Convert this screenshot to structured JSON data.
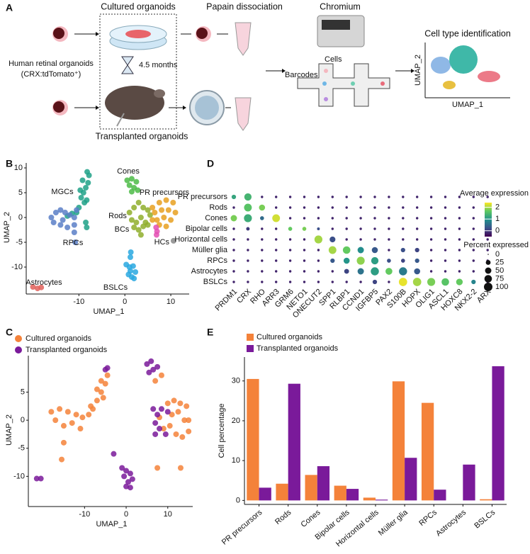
{
  "panel_labels": [
    "A",
    "B",
    "C",
    "D",
    "E"
  ],
  "diagram": {
    "cultured": "Cultured organoids",
    "papain": "Papain dissociation",
    "chromium": "Chromium",
    "source": "Human retinal organoids",
    "reporter": "(CRX:tdTomato⁺)",
    "duration": "4.5 months",
    "transplanted": "Transplanted organoids",
    "cells": "Cells",
    "barcodes": "Barcodes",
    "identification": "Cell type identification",
    "umap_y": "UMAP_2",
    "umap_x": "UMAP_1"
  },
  "chart_data": [
    {
      "type": "scatter",
      "x_label": "UMAP_1",
      "y_label": "UMAP_2",
      "xlim": [
        -21,
        14
      ],
      "ylim": [
        -15,
        11
      ],
      "xticks": [
        -10,
        0,
        10
      ],
      "yticks": [
        -10,
        -5,
        0,
        5,
        10
      ],
      "legend": "inline",
      "series": [
        {
          "name": "MGCs",
          "color": "#1fa187",
          "x": [
            -8.2,
            -7.8,
            -8,
            -8.5,
            -9,
            -9.5,
            -8.8,
            -10,
            -9.7,
            -10.5,
            -11.5,
            -12.5,
            -8.3,
            -9.2,
            -8.5,
            -8.3
          ],
          "y": [
            9.2,
            8.5,
            7,
            6,
            5,
            4,
            3,
            2,
            5.5,
            1,
            0.8,
            0.3,
            3.5,
            7.5,
            -1,
            -2
          ]
        },
        {
          "name": "RPCs",
          "color": "#5b7fc7",
          "x": [
            -16,
            -15,
            -14,
            -13,
            -12,
            -11,
            -10.5,
            -15.5,
            -14,
            -12.5,
            -11,
            -13.5,
            -11,
            -10.8
          ],
          "y": [
            0,
            1,
            1.5,
            1,
            0.5,
            0,
            1.5,
            -1,
            -1.5,
            -2,
            -1.5,
            -0.5,
            -3,
            -5
          ]
        },
        {
          "name": "Astrocytes",
          "color": "#e0605a",
          "x": [
            -20,
            -19,
            -18.2
          ],
          "y": [
            -14,
            -14.3,
            -14.1
          ]
        },
        {
          "name": "BSLCs",
          "color": "#29a8e0",
          "x": [
            0.3,
            1,
            1.8,
            2.3,
            0.8,
            1.5,
            2,
            1.2,
            1.3,
            1.2
          ],
          "y": [
            -9.5,
            -10,
            -9.8,
            -11,
            -11.5,
            -12,
            -12.3,
            -10.8,
            -7,
            -8
          ]
        },
        {
          "name": "Cones",
          "color": "#4cbb47",
          "x": [
            0.5,
            1.5,
            2.5,
            1,
            2,
            2.8,
            1.5
          ],
          "y": [
            7.5,
            7.8,
            7.2,
            6.5,
            6,
            5.5,
            5.2
          ]
        },
        {
          "name": "Rods",
          "color": "#8fae2c",
          "x": [
            1,
            2,
            3,
            4,
            5,
            1.5,
            2.5,
            3.5,
            4.5,
            5.5,
            2,
            3,
            4,
            5,
            3.5
          ],
          "y": [
            1,
            2,
            3,
            2,
            1.5,
            -0.5,
            -1,
            0,
            -1,
            0.5,
            -2,
            -2.5,
            -1.8,
            -1.5,
            -3.5
          ]
        },
        {
          "name": "PR precursors",
          "color": "#e8a020",
          "x": [
            6,
            7.5,
            9,
            10.5,
            6.5,
            8,
            9.5,
            11,
            7,
            8.5,
            10,
            7.5,
            9,
            6
          ],
          "y": [
            2,
            3,
            3.5,
            3,
            1,
            1.5,
            1.5,
            1,
            -0.5,
            0,
            -0.5,
            -1.5,
            -1.8,
            -0.5
          ]
        },
        {
          "name": "BCs",
          "color": "#e34fb3",
          "x": [
            6.8,
            7,
            6.9
          ],
          "y": [
            -2,
            -2.8,
            -3.5
          ]
        },
        {
          "name": "HCs",
          "color": "#888888",
          "x": [
            10.6
          ],
          "y": [
            -4.7
          ]
        }
      ]
    },
    {
      "type": "scatter",
      "x_label": "UMAP_1",
      "y_label": "UMAP_2",
      "xlim": [
        -23,
        16
      ],
      "ylim": [
        -15,
        11.5
      ],
      "xticks": [
        -10,
        0,
        10
      ],
      "yticks": [
        -10,
        -5,
        0,
        5
      ],
      "legend": "top-left",
      "series": [
        {
          "name": "Cultured organoids",
          "color": "#f4823a",
          "x": [
            -9,
            -8,
            -7,
            -6,
            -5,
            -4.5,
            -6,
            -7,
            -8.5,
            -5.5,
            -18,
            -16,
            -14,
            -12,
            -10.5,
            -17,
            -15,
            -13,
            -11,
            -15,
            -15.5,
            10,
            11.5,
            13,
            14.5,
            15,
            11,
            12.5,
            14,
            15,
            10.5,
            12,
            13.5,
            8,
            9,
            7,
            8.5,
            7.5,
            13.1
          ],
          "y": [
            1,
            2,
            3.5,
            5,
            6.5,
            8,
            7,
            5.5,
            2.5,
            4,
            1.5,
            2,
            1.5,
            1,
            0.5,
            0,
            -1,
            -0.5,
            -1.5,
            -4,
            -7,
            3,
            3.5,
            3,
            2.5,
            0,
            1,
            1.5,
            0,
            -2,
            -1,
            -2.5,
            -3,
            0.5,
            -1.5,
            7,
            8,
            -8.5,
            -8.5
          ]
        },
        {
          "name": "Transplanted organoids",
          "color": "#7a1a9a",
          "x": [
            -5,
            -4.5,
            -21.5,
            -20.5,
            -1,
            0,
            1,
            1.5,
            0.5,
            -0.5,
            1,
            0,
            5,
            6,
            5.5,
            6.5,
            7.5,
            6.5,
            7.5,
            8.5,
            7,
            8,
            9.5,
            7,
            10,
            -3
          ],
          "y": [
            9,
            9.3,
            -10.4,
            -10.4,
            -8.5,
            -9,
            -9.5,
            -10.5,
            -11,
            -10,
            -12,
            -11.8,
            10,
            10.5,
            8.5,
            9,
            9.5,
            2,
            1,
            2,
            -0.5,
            -1.5,
            -2.5,
            -2.5,
            1.5,
            -6
          ]
        }
      ]
    },
    {
      "type": "dotplot",
      "colormap": "viridis",
      "categories": [
        "PRDM1",
        "CRX",
        "RHO",
        "ARR3",
        "GRM6",
        "NETO1",
        "ONECUT2",
        "SPP1",
        "RLBP1",
        "CCND1",
        "IGFBP5",
        "PAX2",
        "S100B",
        "HOPX",
        "OLIG1",
        "ASCL1",
        "HOXC8",
        "NKX2-2",
        "ARX"
      ],
      "rows": [
        "PR precursors",
        "Rods",
        "Cones",
        "Bipolar cells",
        "Horizontal cells",
        "Müller glia",
        "RPCs",
        "Astrocytes",
        "BSLCs"
      ],
      "color_label": "Average expression",
      "clim": [
        -0.5,
        2.4
      ],
      "cticks": [
        2,
        1,
        0
      ],
      "size_label": "Percent expressed",
      "size_ticks": [
        0,
        25,
        50,
        75,
        100
      ],
      "expression": [
        [
          1.2,
          1.4,
          -0.2,
          -0.2,
          -0.2,
          -0.2,
          -0.2,
          -0.2,
          -0.2,
          -0.2,
          -0.2,
          -0.2,
          -0.2,
          -0.2,
          -0.2,
          -0.2,
          -0.2,
          -0.2,
          -0.2
        ],
        [
          -0.2,
          1.6,
          1.8,
          -0.2,
          -0.2,
          -0.2,
          -0.2,
          -0.2,
          -0.2,
          -0.2,
          -0.2,
          -0.2,
          -0.2,
          -0.2,
          -0.2,
          -0.2,
          -0.2,
          -0.2,
          -0.2
        ],
        [
          1.8,
          1.3,
          0.5,
          2.2,
          -0.2,
          -0.2,
          -0.2,
          -0.2,
          -0.2,
          -0.2,
          -0.2,
          -0.2,
          -0.2,
          -0.2,
          -0.2,
          -0.2,
          -0.2,
          -0.2,
          -0.2
        ],
        [
          -0.2,
          0,
          -0.2,
          -0.2,
          1.7,
          1.8,
          0.2,
          -0.2,
          -0.2,
          -0.2,
          -0.2,
          -0.2,
          -0.2,
          -0.2,
          -0.2,
          -0.2,
          -0.2,
          -0.2,
          -0.2
        ],
        [
          -0.2,
          -0.2,
          -0.2,
          -0.2,
          -0.2,
          -0.2,
          2.0,
          0.2,
          -0.2,
          -0.2,
          -0.2,
          -0.2,
          -0.2,
          -0.2,
          -0.2,
          -0.2,
          -0.2,
          -0.2,
          -0.2
        ],
        [
          -0.2,
          -0.2,
          -0.2,
          -0.2,
          -0.2,
          -0.2,
          -0.2,
          2.0,
          1.7,
          0.9,
          0.3,
          -0.2,
          0.2,
          0.1,
          -0.2,
          -0.2,
          -0.2,
          -0.2,
          -0.2
        ],
        [
          -0.2,
          -0.2,
          -0.2,
          -0.2,
          -0.2,
          -0.2,
          -0.2,
          0.3,
          1.0,
          1.9,
          1.1,
          0.2,
          0.1,
          0.3,
          -0.2,
          -0.2,
          -0.2,
          -0.2,
          -0.2
        ],
        [
          -0.2,
          -0.2,
          -0.2,
          -0.2,
          -0.2,
          -0.2,
          -0.2,
          -0.2,
          0.1,
          0.6,
          1.1,
          1.7,
          0.7,
          0.3,
          -0.2,
          -0.2,
          -0.2,
          -0.2,
          -0.2
        ],
        [
          -0.2,
          -0.2,
          -0.2,
          -0.2,
          -0.2,
          -0.2,
          -0.2,
          -0.2,
          -0.2,
          -0.2,
          0.1,
          -0.2,
          2.3,
          2.0,
          1.8,
          1.6,
          1.7,
          0.8,
          -0.2
        ]
      ],
      "percent": [
        [
          20,
          70,
          3,
          3,
          3,
          3,
          3,
          3,
          3,
          3,
          3,
          3,
          3,
          3,
          3,
          3,
          3,
          3,
          3
        ],
        [
          3,
          80,
          45,
          3,
          3,
          3,
          3,
          3,
          3,
          3,
          3,
          3,
          3,
          3,
          3,
          3,
          3,
          3,
          3
        ],
        [
          50,
          85,
          15,
          80,
          3,
          3,
          3,
          3,
          3,
          3,
          3,
          3,
          3,
          3,
          3,
          3,
          3,
          3,
          3
        ],
        [
          3,
          10,
          3,
          3,
          15,
          15,
          5,
          3,
          3,
          3,
          3,
          3,
          3,
          3,
          3,
          3,
          3,
          3,
          3
        ],
        [
          3,
          3,
          3,
          3,
          3,
          3,
          85,
          40,
          3,
          3,
          3,
          3,
          3,
          3,
          3,
          3,
          3,
          3,
          3
        ],
        [
          3,
          3,
          3,
          3,
          3,
          3,
          3,
          80,
          75,
          50,
          45,
          3,
          20,
          20,
          3,
          3,
          3,
          3,
          3
        ],
        [
          3,
          3,
          3,
          3,
          3,
          3,
          3,
          20,
          45,
          85,
          70,
          15,
          15,
          20,
          3,
          3,
          3,
          3,
          3
        ],
        [
          3,
          3,
          3,
          3,
          3,
          3,
          3,
          3,
          25,
          50,
          90,
          60,
          90,
          45,
          3,
          3,
          3,
          3,
          3
        ],
        [
          3,
          3,
          3,
          3,
          3,
          3,
          3,
          3,
          3,
          3,
          20,
          3,
          95,
          95,
          85,
          75,
          55,
          20,
          3
        ]
      ]
    },
    {
      "type": "bar",
      "y_label": "Cell percentage",
      "ylim": [
        -1,
        36
      ],
      "yticks": [
        0,
        10,
        20,
        30
      ],
      "legend": "top-left",
      "categories": [
        "PR precursors",
        "Rods",
        "Cones",
        "Bipolar cells",
        "Horizontal cells",
        "Müller glia",
        "RPCs",
        "Astrocytes",
        "BSLCs"
      ],
      "series": [
        {
          "name": "Cultured organoids",
          "color": "#f4823a",
          "values": [
            30.5,
            4.2,
            6.4,
            3.7,
            0.7,
            29.9,
            24.5,
            0,
            0.3
          ]
        },
        {
          "name": "Transplanted organoids",
          "color": "#7a1a9a",
          "values": [
            3.2,
            29.3,
            8.6,
            2.9,
            0.2,
            10.7,
            2.7,
            9.0,
            33.7
          ]
        }
      ]
    }
  ]
}
